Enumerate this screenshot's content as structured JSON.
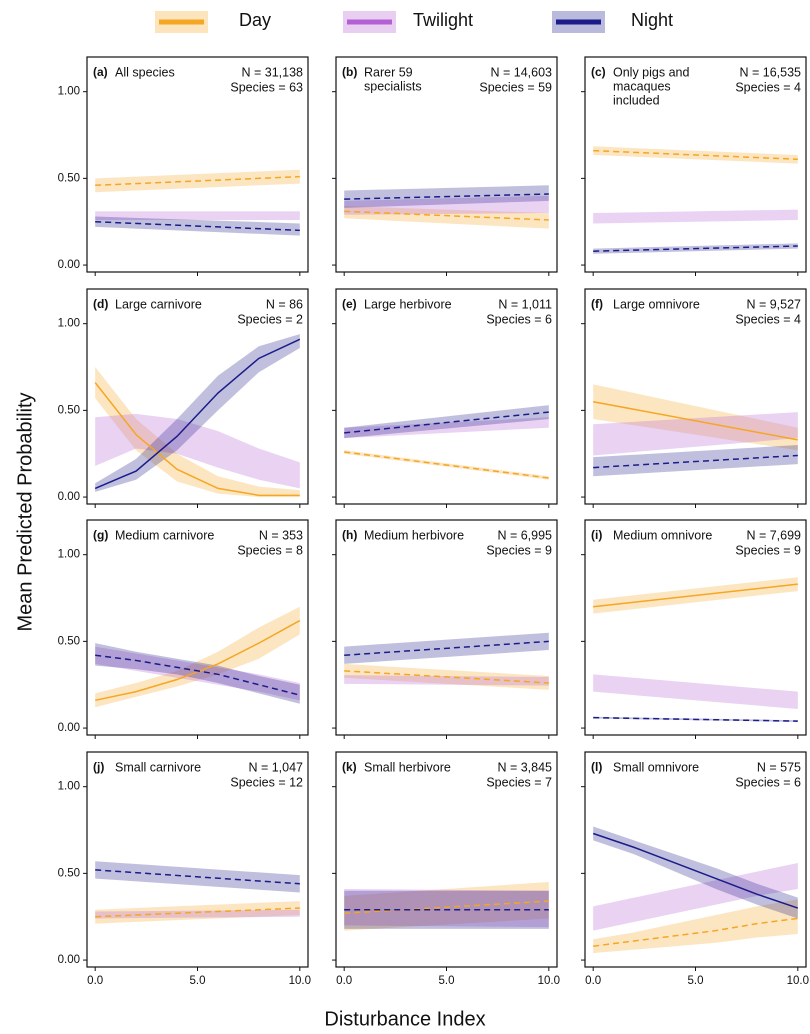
{
  "legend": [
    {
      "name": "Day",
      "color": "#f5a623"
    },
    {
      "name": "Twilight",
      "color": "#b45fd3"
    },
    {
      "name": "Night",
      "color": "#1b1b8a"
    }
  ],
  "axes": {
    "y_label": "Mean Predicted Probability",
    "x_label": "Disturbance Index",
    "xlim": [
      -0.4,
      10.4
    ],
    "ylim": [
      -0.04,
      1.2
    ],
    "xticks": [
      {
        "value": 0,
        "label": "0.0"
      },
      {
        "value": 5,
        "label": "5.0"
      },
      {
        "value": 10,
        "label": "10.0"
      }
    ],
    "yticks": [
      {
        "value": 0,
        "label": "0.00"
      },
      {
        "value": 0.5,
        "label": "0.50"
      },
      {
        "value": 1,
        "label": "1.00"
      }
    ]
  },
  "chart_data": [
    {
      "type": "line",
      "label": "(a)",
      "title": [
        "All species"
      ],
      "n_label": "N = 31,138",
      "species_label": "Species = 63",
      "x": [
        0,
        10
      ],
      "series": [
        {
          "style": "dashed",
          "values": [
            0.46,
            0.51
          ],
          "lower": [
            0.42,
            0.47
          ],
          "upper": [
            0.5,
            0.55
          ]
        },
        {
          "style": "none",
          "lower": [
            0.26,
            0.26
          ],
          "upper": [
            0.31,
            0.31
          ]
        },
        {
          "style": "dashed",
          "values": [
            0.25,
            0.2
          ],
          "lower": [
            0.22,
            0.17
          ],
          "upper": [
            0.28,
            0.24
          ]
        }
      ]
    },
    {
      "type": "line",
      "label": "(b)",
      "title": [
        "Rarer 59",
        "specialists"
      ],
      "n_label": "N = 14,603",
      "species_label": "Species = 59",
      "x": [
        0,
        10
      ],
      "series": [
        {
          "style": "dashed",
          "values": [
            0.31,
            0.26
          ],
          "lower": [
            0.27,
            0.21
          ],
          "upper": [
            0.34,
            0.3
          ]
        },
        {
          "style": "none",
          "lower": [
            0.29,
            0.3
          ],
          "upper": [
            0.37,
            0.4
          ]
        },
        {
          "style": "dashed",
          "values": [
            0.38,
            0.41
          ],
          "lower": [
            0.33,
            0.37
          ],
          "upper": [
            0.43,
            0.46
          ]
        }
      ]
    },
    {
      "type": "line",
      "label": "(c)",
      "title": [
        "Only pigs and",
        "macaques",
        "included"
      ],
      "n_label": "N = 16,535",
      "species_label": "Species = 4",
      "x": [
        0,
        10
      ],
      "series": [
        {
          "style": "dashed",
          "values": [
            0.66,
            0.61
          ],
          "lower": [
            0.635,
            0.585
          ],
          "upper": [
            0.685,
            0.635
          ]
        },
        {
          "style": "none",
          "lower": [
            0.24,
            0.26
          ],
          "upper": [
            0.3,
            0.32
          ]
        },
        {
          "style": "dashed",
          "values": [
            0.08,
            0.11
          ],
          "lower": [
            0.065,
            0.095
          ],
          "upper": [
            0.095,
            0.125
          ]
        }
      ]
    },
    {
      "type": "line",
      "label": "(d)",
      "title": [
        "Large carnivore"
      ],
      "n_label": "N = 86",
      "species_label": "Species = 2",
      "x": [
        0,
        2,
        4,
        6,
        8,
        10
      ],
      "series": [
        {
          "style": "solid",
          "values": [
            0.66,
            0.36,
            0.16,
            0.05,
            0.01,
            0.01
          ],
          "lower": [
            0.57,
            0.27,
            0.09,
            0.02,
            0.0,
            0.0
          ],
          "upper": [
            0.75,
            0.45,
            0.25,
            0.12,
            0.06,
            0.04
          ]
        },
        {
          "style": "none",
          "lower": [
            0.18,
            0.28,
            0.25,
            0.17,
            0.1,
            0.05
          ],
          "upper": [
            0.46,
            0.48,
            0.45,
            0.38,
            0.28,
            0.2
          ]
        },
        {
          "style": "solid",
          "values": [
            0.05,
            0.15,
            0.35,
            0.6,
            0.8,
            0.91
          ],
          "lower": [
            0.03,
            0.1,
            0.27,
            0.5,
            0.72,
            0.86
          ],
          "upper": [
            0.08,
            0.22,
            0.45,
            0.7,
            0.87,
            0.94
          ]
        }
      ]
    },
    {
      "type": "line",
      "label": "(e)",
      "title": [
        "Large herbivore"
      ],
      "n_label": "N = 1,011",
      "species_label": "Species = 6",
      "x": [
        0,
        10
      ],
      "series": [
        {
          "style": "dashed",
          "values": [
            0.26,
            0.11
          ],
          "lower": [
            0.25,
            0.1
          ],
          "upper": [
            0.27,
            0.12
          ]
        },
        {
          "style": "none",
          "lower": [
            0.34,
            0.4
          ],
          "upper": [
            0.4,
            0.46
          ]
        },
        {
          "style": "dashed",
          "values": [
            0.37,
            0.49
          ],
          "lower": [
            0.34,
            0.45
          ],
          "upper": [
            0.4,
            0.53
          ]
        }
      ]
    },
    {
      "type": "line",
      "label": "(f)",
      "title": [
        "Large omnivore"
      ],
      "n_label": "N = 9,527",
      "species_label": "Species = 4",
      "x": [
        0,
        10
      ],
      "series": [
        {
          "style": "solid",
          "values": [
            0.55,
            0.33
          ],
          "lower": [
            0.45,
            0.27
          ],
          "upper": [
            0.65,
            0.4
          ]
        },
        {
          "style": "none",
          "lower": [
            0.24,
            0.34
          ],
          "upper": [
            0.42,
            0.49
          ]
        },
        {
          "style": "dashed",
          "values": [
            0.17,
            0.24
          ],
          "lower": [
            0.12,
            0.19
          ],
          "upper": [
            0.23,
            0.3
          ]
        }
      ]
    },
    {
      "type": "line",
      "label": "(g)",
      "title": [
        "Medium carnivore"
      ],
      "n_label": "N = 353",
      "species_label": "Species = 8",
      "x": [
        0,
        2,
        4,
        6,
        8,
        10
      ],
      "series": [
        {
          "style": "solid",
          "values": [
            0.16,
            0.21,
            0.28,
            0.37,
            0.49,
            0.62
          ],
          "lower": [
            0.12,
            0.18,
            0.24,
            0.31,
            0.4,
            0.54
          ],
          "upper": [
            0.2,
            0.26,
            0.33,
            0.44,
            0.58,
            0.7
          ]
        },
        {
          "style": "none",
          "lower": [
            0.37,
            0.33,
            0.29,
            0.25,
            0.21,
            0.16
          ],
          "upper": [
            0.47,
            0.43,
            0.39,
            0.35,
            0.31,
            0.26
          ]
        },
        {
          "style": "dashed",
          "values": [
            0.42,
            0.39,
            0.35,
            0.31,
            0.25,
            0.19
          ],
          "lower": [
            0.36,
            0.34,
            0.31,
            0.26,
            0.2,
            0.14
          ],
          "upper": [
            0.49,
            0.44,
            0.4,
            0.36,
            0.3,
            0.25
          ]
        }
      ]
    },
    {
      "type": "line",
      "label": "(h)",
      "title": [
        "Medium herbivore"
      ],
      "n_label": "N = 6,995",
      "species_label": "Species = 9",
      "x": [
        0,
        10
      ],
      "series": [
        {
          "style": "dashed",
          "values": [
            0.33,
            0.26
          ],
          "lower": [
            0.29,
            0.22
          ],
          "upper": [
            0.37,
            0.3
          ]
        },
        {
          "style": "none",
          "lower": [
            0.255,
            0.245
          ],
          "upper": [
            0.305,
            0.295
          ]
        },
        {
          "style": "dashed",
          "values": [
            0.42,
            0.5
          ],
          "lower": [
            0.37,
            0.45
          ],
          "upper": [
            0.47,
            0.55
          ]
        }
      ]
    },
    {
      "type": "line",
      "label": "(i)",
      "title": [
        "Medium omnivore"
      ],
      "n_label": "N = 7,699",
      "species_label": "Species = 9",
      "x": [
        0,
        10
      ],
      "series": [
        {
          "style": "solid",
          "values": [
            0.7,
            0.83
          ],
          "lower": [
            0.66,
            0.79
          ],
          "upper": [
            0.74,
            0.87
          ]
        },
        {
          "style": "none",
          "lower": [
            0.21,
            0.11
          ],
          "upper": [
            0.31,
            0.21
          ]
        },
        {
          "style": "dashed",
          "values": [
            0.06,
            0.04
          ],
          "lower": [
            0.055,
            0.035
          ],
          "upper": [
            0.065,
            0.045
          ]
        }
      ]
    },
    {
      "type": "line",
      "label": "(j)",
      "title": [
        "Small carnivore"
      ],
      "n_label": "N = 1,047",
      "species_label": "Species = 12",
      "x": [
        0,
        10
      ],
      "series": [
        {
          "style": "dashed",
          "values": [
            0.25,
            0.3
          ],
          "lower": [
            0.21,
            0.26
          ],
          "upper": [
            0.29,
            0.34
          ]
        },
        {
          "style": "none",
          "lower": [
            0.24,
            0.25
          ],
          "upper": [
            0.28,
            0.29
          ]
        },
        {
          "style": "dashed",
          "values": [
            0.52,
            0.44
          ],
          "lower": [
            0.47,
            0.39
          ],
          "upper": [
            0.57,
            0.49
          ]
        }
      ]
    },
    {
      "type": "line",
      "label": "(k)",
      "title": [
        "Small herbivore"
      ],
      "n_label": "N = 3,845",
      "species_label": "Species = 7",
      "x": [
        0,
        10
      ],
      "series": [
        {
          "style": "dashed",
          "values": [
            0.27,
            0.34
          ],
          "lower": [
            0.17,
            0.24
          ],
          "upper": [
            0.37,
            0.45
          ]
        },
        {
          "style": "none",
          "lower": [
            0.2,
            0.19
          ],
          "upper": [
            0.41,
            0.4
          ]
        },
        {
          "style": "dashed",
          "values": [
            0.29,
            0.29
          ],
          "lower": [
            0.18,
            0.18
          ],
          "upper": [
            0.4,
            0.4
          ]
        }
      ]
    },
    {
      "type": "line",
      "label": "(l)",
      "title": [
        "Small omnivore"
      ],
      "n_label": "N = 575",
      "species_label": "Species = 6",
      "x": [
        0,
        2,
        4,
        6,
        8,
        10
      ],
      "series": [
        {
          "style": "dashed",
          "values": [
            0.08,
            0.11,
            0.14,
            0.17,
            0.21,
            0.24
          ],
          "lower": [
            0.04,
            0.06,
            0.08,
            0.1,
            0.13,
            0.15
          ],
          "upper": [
            0.12,
            0.16,
            0.21,
            0.26,
            0.31,
            0.35
          ]
        },
        {
          "style": "none",
          "lower": [
            0.17,
            0.22,
            0.27,
            0.32,
            0.37,
            0.41
          ],
          "upper": [
            0.31,
            0.36,
            0.41,
            0.46,
            0.51,
            0.56
          ]
        },
        {
          "style": "solid",
          "values": [
            0.73,
            0.65,
            0.56,
            0.47,
            0.38,
            0.3
          ],
          "lower": [
            0.69,
            0.61,
            0.51,
            0.41,
            0.32,
            0.24
          ],
          "upper": [
            0.77,
            0.69,
            0.61,
            0.53,
            0.44,
            0.36
          ]
        }
      ]
    }
  ]
}
